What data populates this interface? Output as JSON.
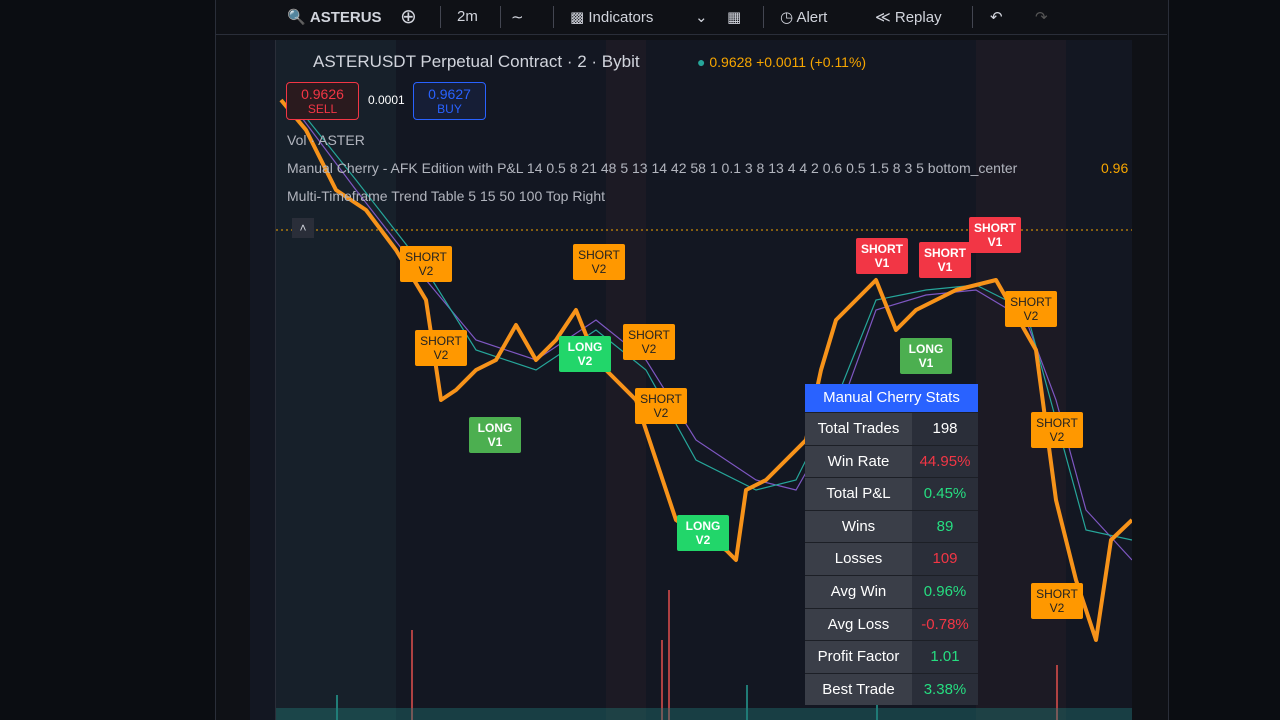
{
  "toolbar": {
    "symbol": "ASTERUS",
    "interval": "2m",
    "indicators": "Indicators",
    "alert": "Alert",
    "replay": "Replay"
  },
  "header": {
    "title": "ASTERUSDT Perpetual Contract · 2 · Bybit",
    "price": "0.9628",
    "change": "+0.0011 (+0.11%)"
  },
  "order": {
    "sell_price": "0.9626",
    "sell_label": "SELL",
    "spread": "0.0001",
    "buy_price": "0.9627",
    "buy_label": "BUY"
  },
  "indicators": [
    "Vol · ASTER",
    "Manual Cherry - AFK Edition with P&L 14 0.5 8 21 48 5 13 14 42 58 1 0.1 3 8 13 4 4 2 0.6 0.5 1.5 8 3 5 bottom_center",
    "Multi-Timeframe Trend Table 5 15 50 100 Top Right"
  ],
  "indicator_value": "0.96",
  "signals": [
    {
      "label": "SHORT V1",
      "color": "#f23645"
    },
    {
      "label": "SHORT V1",
      "color": "#f23645"
    },
    {
      "label": "SHORT V1",
      "color": "#f23645"
    },
    {
      "label": "LONG V1",
      "color": "#4caf50"
    },
    {
      "label": "LONG V1",
      "color": "#4caf50"
    },
    {
      "label": "LONG V2",
      "color": "#22d66a"
    },
    {
      "label": "LONG V2",
      "color": "#22d66a"
    },
    {
      "label": "SHORT V2",
      "color": "#ff9800"
    },
    {
      "label": "SHORT V2",
      "color": "#ff9800"
    },
    {
      "label": "SHORT V2",
      "color": "#ff9800"
    },
    {
      "label": "SHORT V2",
      "color": "#ff9800"
    },
    {
      "label": "SHORT V2",
      "color": "#ff9800"
    },
    {
      "label": "SHORT V2",
      "color": "#ff9800"
    },
    {
      "label": "SHORT V2",
      "color": "#ff9800"
    },
    {
      "label": "SHORT V2",
      "color": "#ff9800"
    }
  ],
  "stats": {
    "title": "Manual Cherry Stats",
    "rows": [
      {
        "label": "Total Trades",
        "value": "198",
        "color": "#ffffff"
      },
      {
        "label": "Win Rate",
        "value": "44.95%",
        "color": "#f23645"
      },
      {
        "label": "Total P&L",
        "value": "0.45%",
        "color": "#26de81"
      },
      {
        "label": "Wins",
        "value": "89",
        "color": "#26de81"
      },
      {
        "label": "Losses",
        "value": "109",
        "color": "#f23645"
      },
      {
        "label": "Avg Win",
        "value": "0.96%",
        "color": "#26de81"
      },
      {
        "label": "Avg Loss",
        "value": "-0.78%",
        "color": "#f23645"
      },
      {
        "label": "Profit Factor",
        "value": "1.01",
        "color": "#26de81"
      },
      {
        "label": "Best Trade",
        "value": "3.38%",
        "color": "#26de81"
      }
    ]
  }
}
